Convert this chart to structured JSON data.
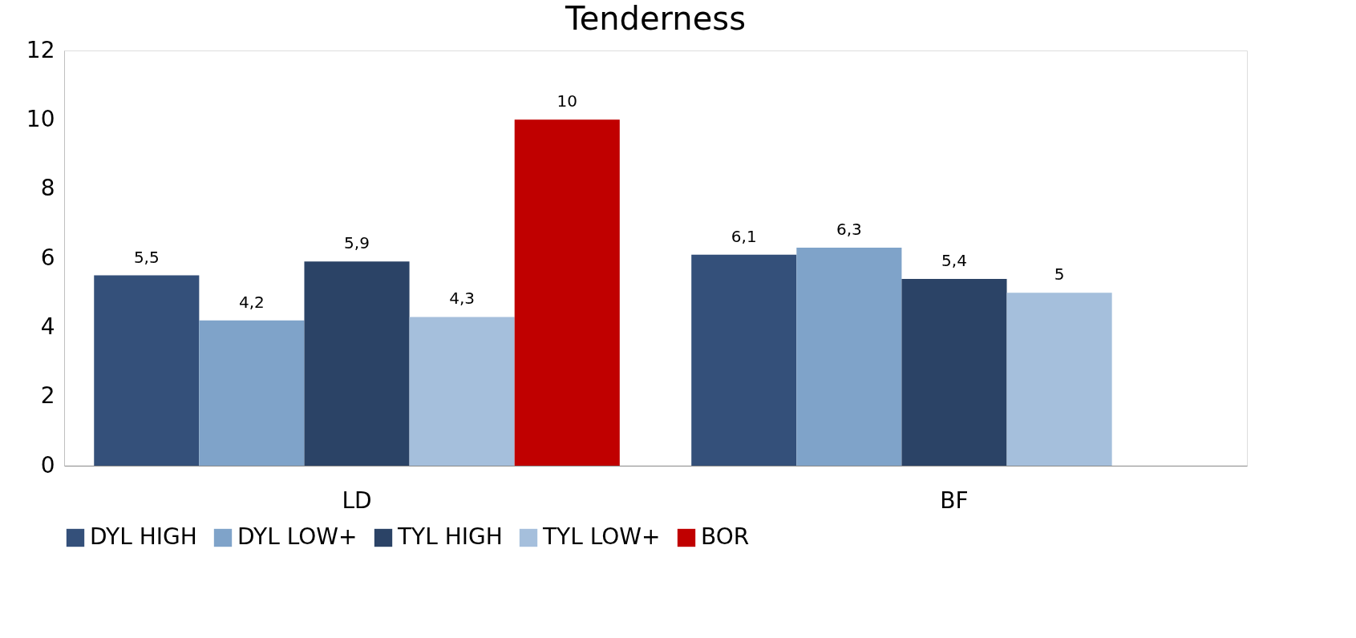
{
  "chart_data": {
    "type": "bar",
    "title": "Tenderness",
    "categories": [
      "LD",
      "BF"
    ],
    "series": [
      {
        "name": "DYL HIGH",
        "color": "#34507a",
        "values": [
          5.5,
          6.1
        ],
        "value_labels": [
          "5,5",
          "6,1"
        ]
      },
      {
        "name": "DYL LOW+",
        "color": "#7fa3c9",
        "values": [
          4.2,
          6.3
        ],
        "value_labels": [
          "4,2",
          "6,3"
        ]
      },
      {
        "name": "TYL HIGH",
        "color": "#2b4366",
        "values": [
          5.9,
          5.4
        ],
        "value_labels": [
          "5,9",
          "5,4"
        ]
      },
      {
        "name": "TYL LOW+",
        "color": "#a5bfdc",
        "values": [
          4.3,
          5
        ],
        "value_labels": [
          "4,3",
          "5"
        ]
      },
      {
        "name": "BOR",
        "color": "#c00000",
        "values": [
          10,
          null
        ],
        "value_labels": [
          "10",
          null
        ]
      }
    ],
    "ylim": [
      0,
      12
    ],
    "yticks": [
      0,
      2,
      4,
      6,
      8,
      10,
      12
    ],
    "grid": false,
    "legend": "bottom"
  }
}
